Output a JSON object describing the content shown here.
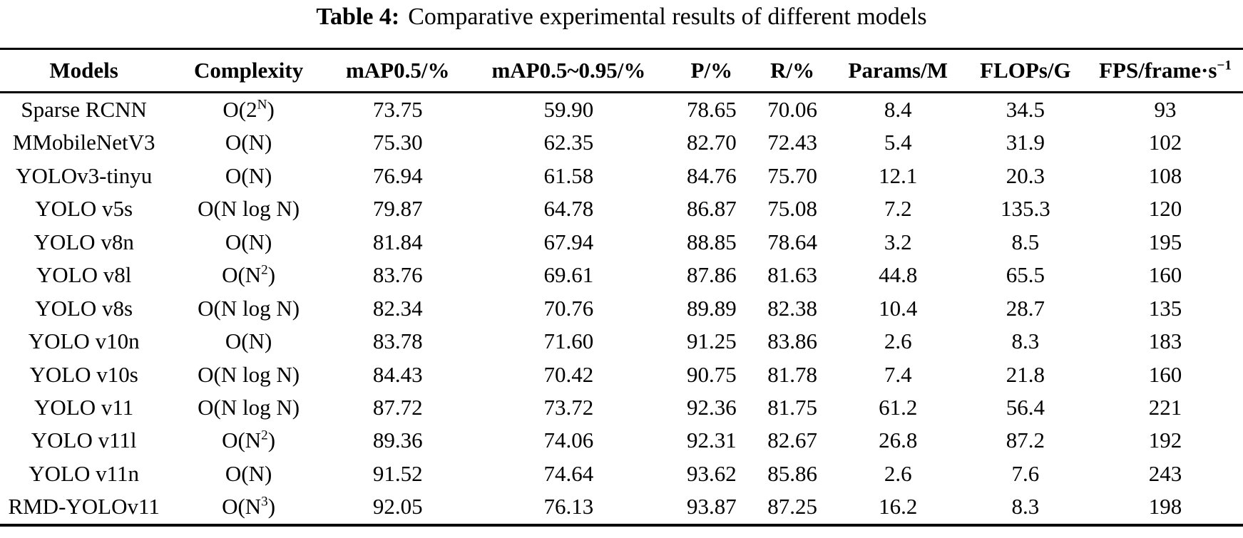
{
  "title": {
    "label": "Table 4:",
    "text": "Comparative experimental results of different models"
  },
  "table": {
    "columns": [
      {
        "key": "model",
        "label": "Models",
        "width": "13.5%"
      },
      {
        "key": "complexity",
        "label": "Complexity",
        "width": "13%"
      },
      {
        "key": "map50",
        "label": "mAP0.5/%",
        "width": "11%"
      },
      {
        "key": "map5095",
        "label": "mAP0.5~0.95/%",
        "width": "16.5%"
      },
      {
        "key": "p",
        "label": "P/%",
        "width": "6.5%"
      },
      {
        "key": "r",
        "label": "R/%",
        "width": "6.5%"
      },
      {
        "key": "params",
        "label": "Params/M",
        "width": "10.5%"
      },
      {
        "key": "flops",
        "label": "FLOPs/G",
        "width": "10%"
      },
      {
        "key": "fps",
        "label": "FPS/frame·s^{−1}",
        "width": "12.5%"
      }
    ],
    "rows": [
      [
        "Sparse RCNN",
        "O(2^{N})",
        "73.75",
        "59.90",
        "78.65",
        "70.06",
        "8.4",
        "34.5",
        "93"
      ],
      [
        "MMobileNetV3",
        "O(N)",
        "75.30",
        "62.35",
        "82.70",
        "72.43",
        "5.4",
        "31.9",
        "102"
      ],
      [
        "YOLOv3-tinyu",
        "O(N)",
        "76.94",
        "61.58",
        "84.76",
        "75.70",
        "12.1",
        "20.3",
        "108"
      ],
      [
        "YOLO v5s",
        "O(N log N)",
        "79.87",
        "64.78",
        "86.87",
        "75.08",
        "7.2",
        "135.3",
        "120"
      ],
      [
        "YOLO v8n",
        "O(N)",
        "81.84",
        "67.94",
        "88.85",
        "78.64",
        "3.2",
        "8.5",
        "195"
      ],
      [
        "YOLO v8l",
        "O(N^{2})",
        "83.76",
        "69.61",
        "87.86",
        "81.63",
        "44.8",
        "65.5",
        "160"
      ],
      [
        "YOLO v8s",
        "O(N log N)",
        "82.34",
        "70.76",
        "89.89",
        "82.38",
        "10.4",
        "28.7",
        "135"
      ],
      [
        "YOLO v10n",
        "O(N)",
        "83.78",
        "71.60",
        "91.25",
        "83.86",
        "2.6",
        "8.3",
        "183"
      ],
      [
        "YOLO v10s",
        "O(N log N)",
        "84.43",
        "70.42",
        "90.75",
        "81.78",
        "7.4",
        "21.8",
        "160"
      ],
      [
        "YOLO v11",
        "O(N log N)",
        "87.72",
        "73.72",
        "92.36",
        "81.75",
        "61.2",
        "56.4",
        "221"
      ],
      [
        "YOLO v11l",
        "O(N^{2})",
        "89.36",
        "74.06",
        "92.31",
        "82.67",
        "26.8",
        "87.2",
        "192"
      ],
      [
        "YOLO v11n",
        "O(N)",
        "91.52",
        "74.64",
        "93.62",
        "85.86",
        "2.6",
        "7.6",
        "243"
      ],
      [
        "RMD-YOLOv11",
        "O(N^{3})",
        "92.05",
        "76.13",
        "93.87",
        "87.25",
        "16.2",
        "8.3",
        "198"
      ]
    ]
  }
}
